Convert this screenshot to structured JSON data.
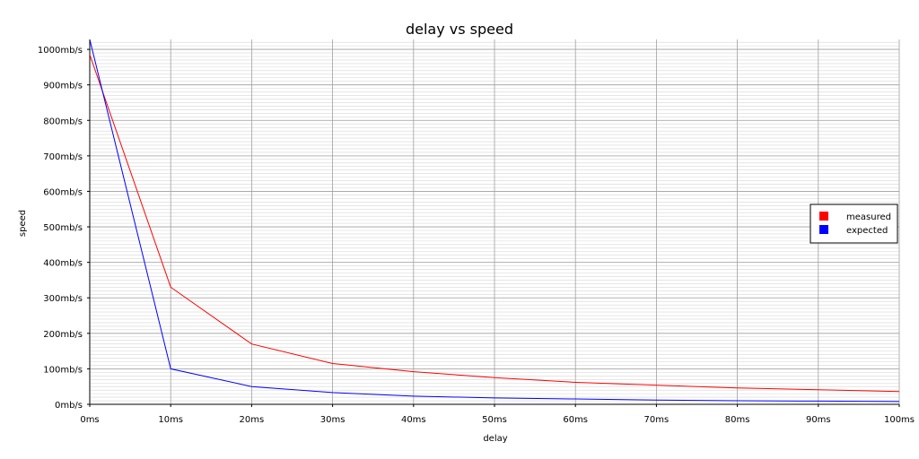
{
  "chart_data": {
    "type": "line",
    "title": "delay vs speed",
    "xlabel": "delay",
    "ylabel": "speed",
    "x": [
      0,
      10,
      20,
      30,
      40,
      50,
      60,
      70,
      80,
      90,
      100
    ],
    "x_tick_labels": [
      "0ms",
      "10ms",
      "20ms",
      "30ms",
      "40ms",
      "50ms",
      "60ms",
      "70ms",
      "80ms",
      "90ms",
      "100ms"
    ],
    "y_ticks": [
      0,
      100,
      200,
      300,
      400,
      500,
      600,
      700,
      800,
      900,
      1000
    ],
    "y_tick_labels": [
      "0mb/s",
      "100mb/s",
      "200mb/s",
      "300mb/s",
      "400mb/s",
      "500mb/s",
      "600mb/s",
      "700mb/s",
      "800mb/s",
      "900mb/s",
      "1000mb/s"
    ],
    "xlim": [
      0,
      100
    ],
    "ylim": [
      0,
      1028
    ],
    "grid": true,
    "minor_grid_step": 10,
    "legend_position": "right",
    "series": [
      {
        "name": "measured",
        "color": "#ff0000",
        "values": [
          985,
          330,
          170,
          115,
          92,
          75,
          62,
          54,
          46,
          41,
          36
        ]
      },
      {
        "name": "expected",
        "color": "#0000ff",
        "values": [
          1028,
          100,
          50,
          33,
          23,
          18,
          15,
          12,
          10,
          9,
          8
        ]
      }
    ]
  }
}
